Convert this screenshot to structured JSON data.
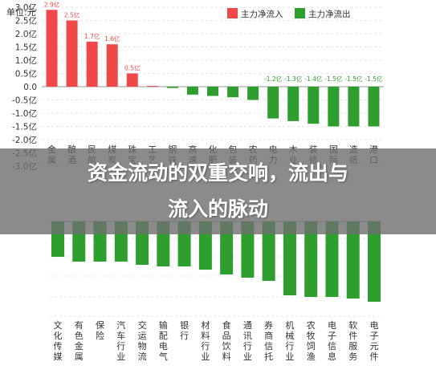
{
  "unit_label": "单位:元",
  "banner": {
    "line1": "资金流动的双重交响，流出与",
    "line2": "流入的脉动"
  },
  "chart_data": [
    {
      "type": "bar",
      "ylabel": "单位:元",
      "ylim": [
        -3.0,
        3.0
      ],
      "yticks": [
        "3.0亿",
        "2.5亿",
        "2.0亿",
        "1.5亿",
        "1.0亿",
        "0.5亿",
        "0.0",
        "-0.5亿",
        "-1.0亿",
        "-1.5亿",
        "-2.0亿",
        "-2.5亿",
        "-3.0亿"
      ],
      "legend": {
        "position": "top-right"
      },
      "grid": true,
      "categories": [
        "金属",
        "酿酒",
        "民航",
        "煤炭",
        "珠宝",
        "工艺",
        "钢铁",
        "高速",
        "化肥",
        "包装",
        "农药",
        "电力",
        "木业",
        "装修",
        "国际",
        "造纸",
        "港口"
      ],
      "series": [
        {
          "name": "主力净流入",
          "color": "#f04848",
          "values": [
            2.9,
            2.5,
            1.7,
            1.6,
            0.5,
            0.02,
            0.0,
            0.0,
            0.0,
            0.0,
            0.0,
            0.0,
            0.0,
            0.0,
            0.0,
            0.0,
            0.0
          ],
          "data_labels": [
            "2.9亿",
            "2.5亿",
            "1.7亿",
            "1.6亿",
            "0.5亿",
            "",
            "",
            "",
            "",
            "",
            "",
            "",
            "",
            "",
            "",
            "",
            ""
          ]
        },
        {
          "name": "主力净流出",
          "color": "#2e9e2e",
          "values": [
            0,
            0,
            0,
            0,
            0,
            0,
            -0.05,
            -0.3,
            -0.35,
            -0.4,
            -0.5,
            -1.2,
            -1.3,
            -1.4,
            -1.5,
            -1.5,
            -1.5
          ],
          "data_labels": [
            "",
            "",
            "",
            "",
            "",
            "",
            "",
            "",
            "",
            "",
            "",
            "-1.2亿",
            "-1.3亿",
            "-1.4亿",
            "-1.5亿",
            "-1.5亿",
            "-1.5亿"
          ]
        }
      ]
    },
    {
      "type": "bar",
      "grid": true,
      "categories": [
        "文化传媒",
        "有色金属",
        "保险",
        "汽车行业",
        "交运物流",
        "输配电气",
        "银行",
        "材料行业",
        "食品饮料",
        "通讯行业",
        "券商信托",
        "机械行业",
        "农牧饲渔",
        "电子信息",
        "软件服务",
        "电子元件"
      ],
      "series": [
        {
          "name": "主力净流出",
          "color": "#2e9e2e",
          "values": [
            -2.2,
            -2.5,
            -2.5,
            -2.5,
            -2.7,
            -2.8,
            -2.8,
            -3.0,
            -3.3,
            -3.5,
            -3.7,
            -4.6,
            -4.7,
            -4.7,
            -4.8,
            -5.0
          ]
        }
      ]
    }
  ]
}
